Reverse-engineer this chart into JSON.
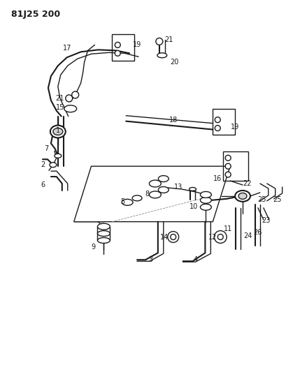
{
  "title": "81J25 200",
  "bg_color": "#ffffff",
  "line_color": "#1a1a1a",
  "fig_width": 4.09,
  "fig_height": 5.33,
  "dpi": 100
}
